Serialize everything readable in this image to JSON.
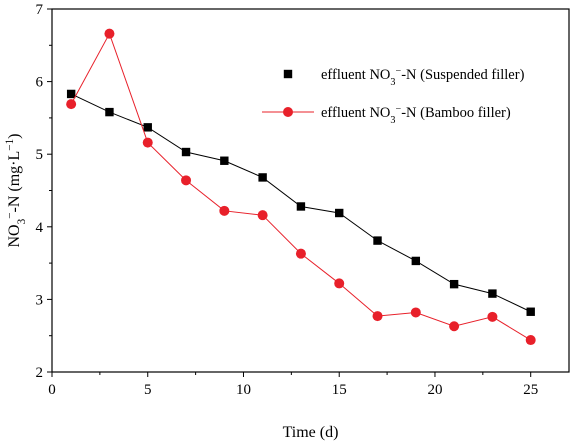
{
  "chart_data": {
    "type": "line",
    "xlabel": "Time (d)",
    "ylabel": "NO3−-N (mg·L−1)",
    "xlim": [
      0,
      27
    ],
    "ylim": [
      2,
      7
    ],
    "x_ticks": [
      0,
      5,
      10,
      15,
      20,
      25
    ],
    "y_ticks": [
      2,
      3,
      4,
      5,
      6,
      7
    ],
    "legend_placement": "top-right",
    "grid": false,
    "x": [
      1,
      3,
      5,
      7,
      9,
      11,
      13,
      15,
      17,
      19,
      21,
      23,
      25
    ],
    "series": [
      {
        "name": "effluent NO3−-N (Suspended filler)",
        "marker": "square",
        "color": "#000000",
        "values": [
          5.83,
          5.58,
          5.37,
          5.03,
          4.91,
          4.68,
          4.28,
          4.19,
          3.81,
          3.53,
          3.21,
          3.08,
          2.83
        ]
      },
      {
        "name": "effluent NO3−-N (Bamboo filler)",
        "marker": "circle",
        "color": "#e8202a",
        "values": [
          5.69,
          6.66,
          5.16,
          4.64,
          4.22,
          4.16,
          3.63,
          3.22,
          2.77,
          2.82,
          2.63,
          2.76,
          2.44
        ]
      }
    ]
  }
}
